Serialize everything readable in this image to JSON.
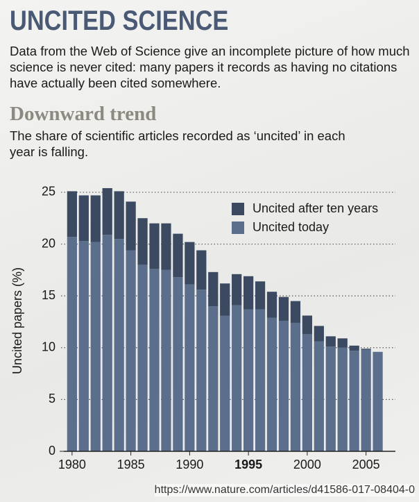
{
  "chart_data": {
    "type": "stacked_bar",
    "title": "UNCITED SCIENCE",
    "intro": "Data from the Web of Science give an incomplete picture of how much science is never cited: many papers it records as having no citations have actually been cited somewhere.",
    "subtitle": "Downward trend",
    "description": "The share of scientific articles recorded as ‘uncited’ in each year is falling.",
    "y_label": "Uncited papers (%)",
    "source": "https://www.nature.com/articles/d41586-017-08404-0",
    "x": [
      1980,
      1981,
      1982,
      1983,
      1984,
      1985,
      1986,
      1987,
      1988,
      1989,
      1990,
      1991,
      1992,
      1993,
      1994,
      1995,
      1996,
      1997,
      1998,
      1999,
      2000,
      2001,
      2002,
      2003,
      2004,
      2005,
      2006
    ],
    "series": [
      {
        "name": "Uncited today",
        "color": "#5b6f8d",
        "values": [
          20.7,
          20.3,
          20.2,
          20.9,
          20.5,
          19.4,
          18.0,
          17.6,
          17.5,
          16.8,
          16.1,
          15.6,
          14.0,
          13.1,
          14.1,
          13.7,
          13.7,
          12.9,
          12.6,
          12.4,
          11.3,
          10.6,
          10.1,
          10.0,
          9.7,
          9.8,
          9.6
        ]
      },
      {
        "name": "Uncited after ten years",
        "color": "#3b4a61",
        "values": [
          4.4,
          4.4,
          4.5,
          4.5,
          4.6,
          4.7,
          4.5,
          4.4,
          4.5,
          4.2,
          4.1,
          3.8,
          3.3,
          3.1,
          3.0,
          3.2,
          2.7,
          2.5,
          2.3,
          2.1,
          1.8,
          1.5,
          1.0,
          0.9,
          0.5,
          0.1,
          0
        ]
      }
    ],
    "xlim": [
      1979.3,
      2007.5
    ],
    "xticks": [
      1980,
      1985,
      1990,
      1995,
      2000,
      2005
    ],
    "bold_xticks": [
      1995
    ],
    "ylim": [
      0,
      26
    ],
    "yticks": [
      0,
      5,
      10,
      15,
      20,
      25
    ],
    "grid": true,
    "legend": "top-right"
  }
}
